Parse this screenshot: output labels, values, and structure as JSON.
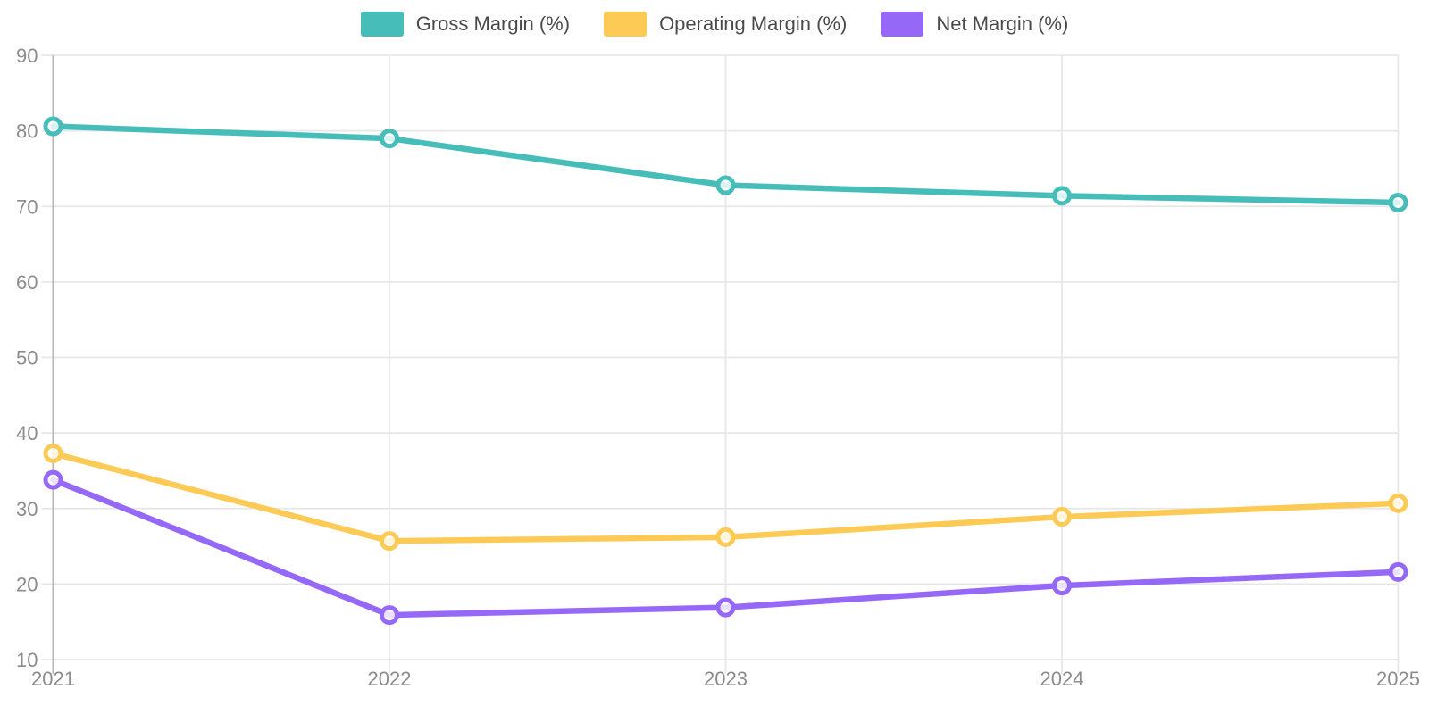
{
  "chart_data": {
    "type": "line",
    "x": [
      "2021",
      "2022",
      "2023",
      "2024",
      "2025"
    ],
    "series": [
      {
        "name": "Gross Margin (%)",
        "color": "#47BDB9",
        "values": [
          80.6,
          79.0,
          72.8,
          71.4,
          70.5
        ]
      },
      {
        "name": "Operating Margin (%)",
        "color": "#FDCB55",
        "values": [
          37.3,
          25.7,
          26.2,
          28.9,
          30.7
        ]
      },
      {
        "name": "Net Margin (%)",
        "color": "#9568F7",
        "values": [
          33.8,
          15.9,
          16.9,
          19.8,
          21.6
        ]
      }
    ],
    "ylim": [
      10,
      90
    ],
    "y_ticks": [
      90,
      80,
      70,
      60,
      50,
      40,
      30,
      20,
      10
    ],
    "grid": true,
    "legend_position": "top",
    "styles": {
      "background": "#FFFFFF",
      "grid_color": "#E7E7E7",
      "axis_color": "#B5B5B5",
      "tick_label_color": "#8C8C8C",
      "legend_text_color": "#4A4A4A",
      "point_fill": "rgba(255,255,255,0.8)"
    }
  }
}
